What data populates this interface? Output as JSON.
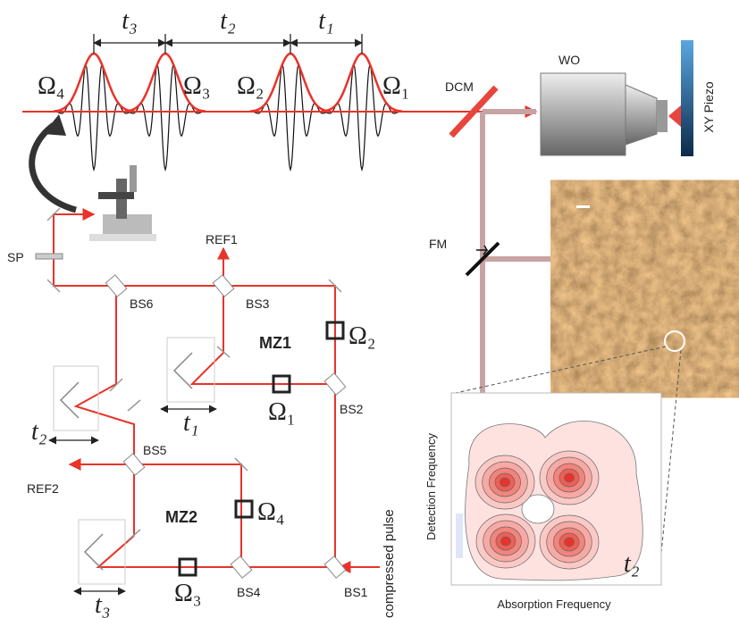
{
  "pulse_train": {
    "delays": [
      "t₃",
      "t₂",
      "t₁"
    ],
    "pulses": [
      "Ω₄",
      "Ω₃",
      "Ω₂",
      "Ω₁"
    ]
  },
  "microscope": {
    "mirror": "DCM",
    "objective": "WO",
    "stage": "XY Piezo",
    "flip_mirror": "FM"
  },
  "setup": {
    "periscope": "SP",
    "ref1": "REF1",
    "ref2": "REF2",
    "splitters": {
      "bs1": "BS1",
      "bs2": "BS2",
      "bs3": "BS3",
      "bs4": "BS4",
      "bs5": "BS5",
      "bs6": "BS6"
    },
    "mz1": {
      "label": "MZ1",
      "pulse_a": "Ω₂",
      "pulse_b": "Ω₁",
      "delay": "t₁"
    },
    "mz2": {
      "label": "MZ2",
      "pulse_a": "Ω₄",
      "pulse_b": "Ω₃",
      "delay": "t₃"
    },
    "outer_delay": "t₂",
    "input": "compressed pulse"
  },
  "spectrum": {
    "y_label": "Detection Frequency",
    "x_label": "Absorption Frequency",
    "delay": "t₂"
  }
}
